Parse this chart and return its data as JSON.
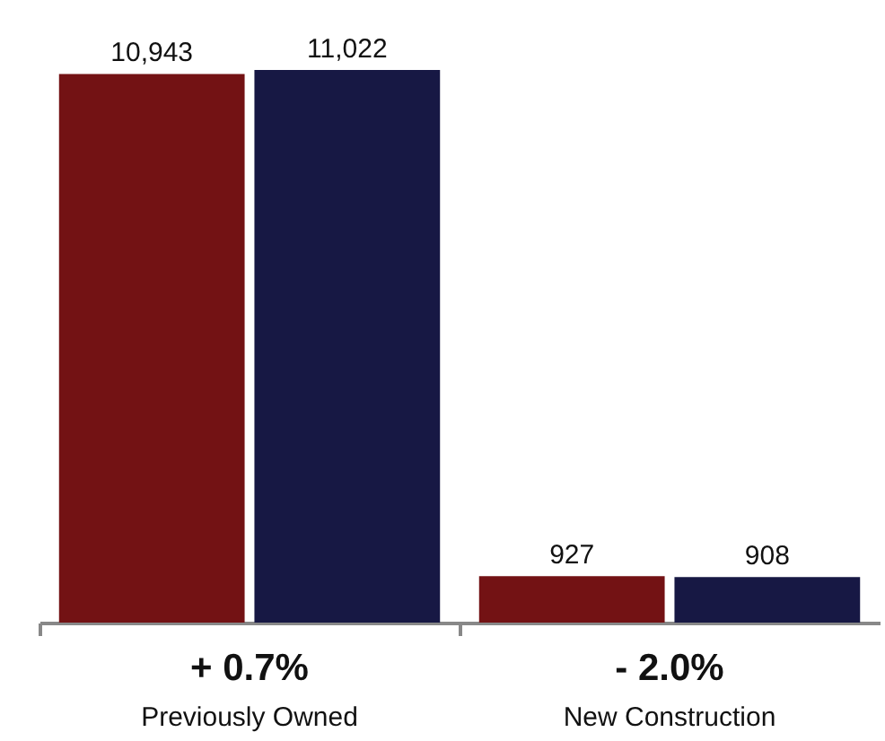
{
  "chart_data": {
    "type": "bar",
    "categories": [
      "Previously Owned",
      "New Construction"
    ],
    "series": [
      {
        "color": "#731214",
        "values": [
          10943,
          927
        ],
        "value_labels": [
          "10,943",
          "927"
        ]
      },
      {
        "color": "#171844",
        "values": [
          11022,
          908
        ],
        "value_labels": [
          "11,022",
          "908"
        ]
      }
    ],
    "legend": false,
    "grid": false,
    "annotations": [
      "+ 0.7%",
      "- 2.0%"
    ]
  }
}
